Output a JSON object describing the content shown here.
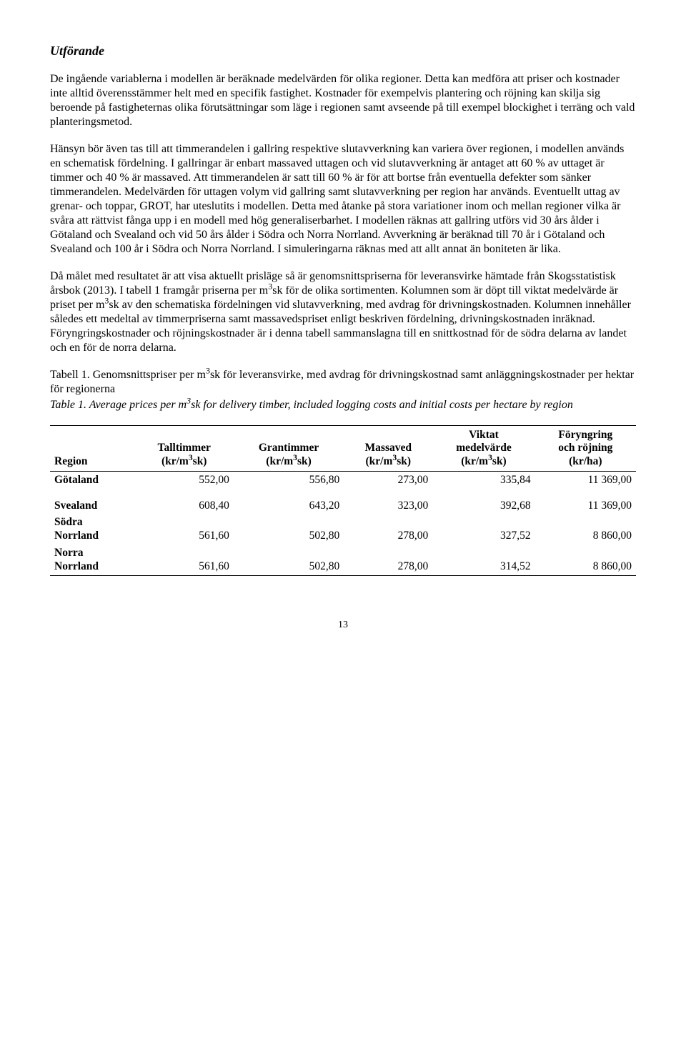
{
  "heading": "Utförande",
  "para1": "De ingående variablerna i modellen är beräknade medelvärden för olika regioner. Detta kan medföra att priser och kostnader inte alltid överensstämmer helt med en specifik fastighet. Kostnader för exempelvis plantering och röjning kan skilja sig beroende på fastigheternas olika förutsättningar som läge i regionen samt avseende på till exempel blockighet i terräng och vald planteringsmetod.",
  "para2": "Hänsyn bör även tas till att timmerandelen i gallring respektive slutavverkning kan variera över regionen, i modellen används en schematisk fördelning. I gallringar är enbart massaved uttagen och vid slutavverkning är antaget att 60 % av uttaget är timmer och 40 % är massaved. Att timmerandelen är satt till 60 % är för att bortse från eventuella defekter som sänker timmerandelen. Medelvärden för uttagen volym vid gallring samt slutavverkning per region har används. Eventuellt uttag av grenar- och toppar, GROT, har uteslutits i modellen. Detta med åtanke på stora variationer inom och mellan regioner vilka är svåra att rättvist fånga upp i en modell med hög generaliserbarhet. I modellen räknas att gallring utförs vid 30 års ålder i Götaland och Svealand och vid 50 års ålder i Södra och Norra Norrland. Avverkning är beräknad till 70 år i Götaland och Svealand och 100 år i Södra och Norra Norrland. I simuleringarna räknas med att allt annat än boniteten är lika.",
  "para3_a": "Då målet med resultatet är att visa aktuellt prisläge så är genomsnittspriserna för leveransvirke hämtade från Skogsstatistisk årsbok (2013). I tabell 1 framgår priserna per m",
  "para3_b": "sk för de olika sortimenten. Kolumnen som är döpt till viktat medelvärde är priset per m",
  "para3_c": "sk av den schematiska fördelningen vid slutavverkning, med avdrag för drivningskostnaden. Kolumnen innehåller således ett medeltal av timmerpriserna samt massavedspriset enligt beskriven fördelning, drivningskostnaden inräknad. Föryngringskostnader och röjningskostnader är i denna tabell sammanslagna till en snittkostnad för de södra delarna av landet och en för de norra delarna.",
  "table": {
    "caption_a": "Tabell 1. Genomsnittspriser per m",
    "caption_b": "sk för leveransvirke, med avdrag för drivningskostnad samt anläggningskostnader per hektar för regionerna",
    "subcaption_a": "Table 1. Average prices per m",
    "subcaption_b": "sk for delivery timber, included logging costs and initial costs per hectare by region",
    "columns": {
      "c0": "Region",
      "c1a": "Talltimmer",
      "c1b": "(kr/m",
      "c1c": "sk)",
      "c2a": "Grantimmer",
      "c2b": "(kr/m",
      "c2c": "sk)",
      "c3a": "Massaved",
      "c3b": "(kr/m",
      "c3c": "sk)",
      "c4a": "Viktat",
      "c4b": "medelvärde",
      "c4c": "(kr/m",
      "c4d": "sk)",
      "c5a": "Föryngring",
      "c5b": "och röjning",
      "c5c": "(kr/ha)"
    },
    "rows": {
      "r0": {
        "region": "Götaland",
        "tall": "552,00",
        "gran": "556,80",
        "mass": "273,00",
        "viktat": "335,84",
        "foryng": "11 369,00"
      },
      "r1": {
        "region": "Svealand",
        "tall": "608,40",
        "gran": "643,20",
        "mass": "323,00",
        "viktat": "392,68",
        "foryng": "11 369,00"
      },
      "r2": {
        "region_a": "Södra",
        "region_b": "Norrland",
        "tall": "561,60",
        "gran": "502,80",
        "mass": "278,00",
        "viktat": "327,52",
        "foryng": "8 860,00"
      },
      "r3": {
        "region_a": "Norra",
        "region_b": "Norrland",
        "tall": "561,60",
        "gran": "502,80",
        "mass": "278,00",
        "viktat": "314,52",
        "foryng": "8 860,00"
      }
    }
  },
  "sup3": "3",
  "page_number": "13"
}
